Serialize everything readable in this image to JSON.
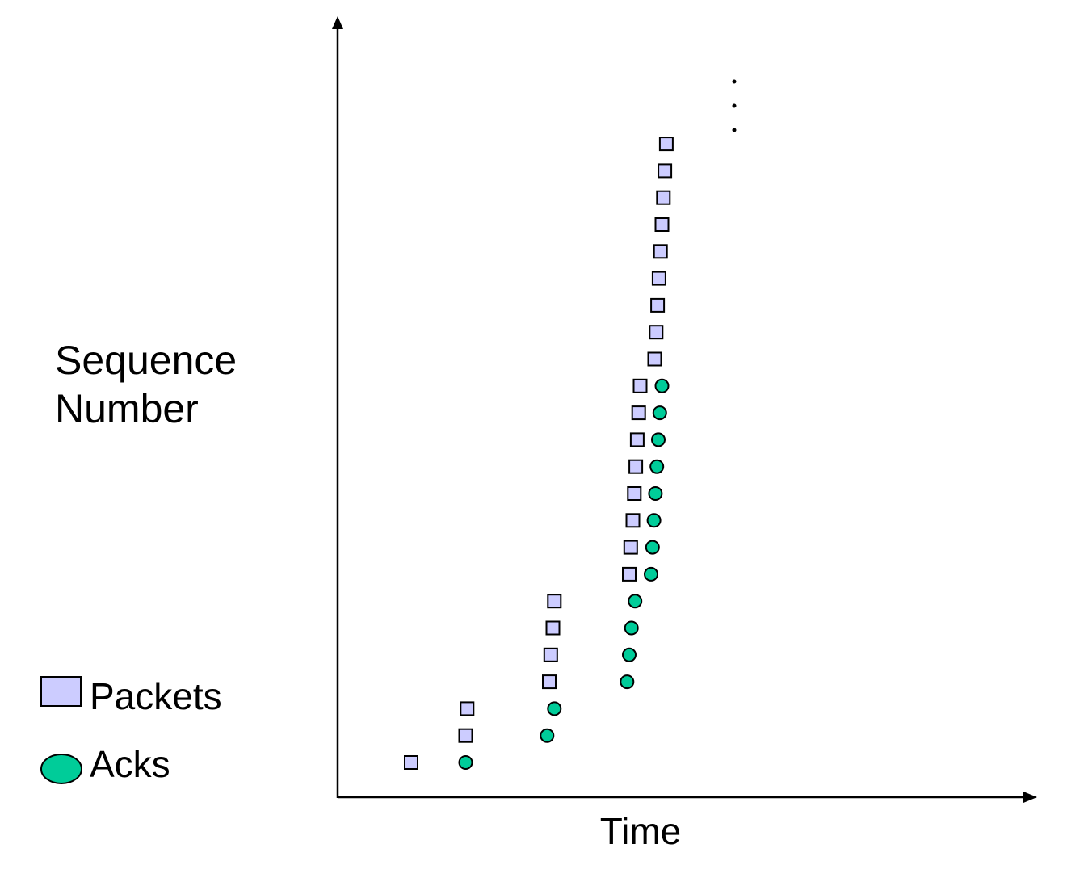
{
  "colors": {
    "packet_fill": "#ccccff",
    "ack_fill": "#00cc99",
    "axis": "#000000"
  },
  "chart_data": {
    "type": "scatter",
    "title": "",
    "xlabel": "Time",
    "ylabel_lines": [
      "Sequence",
      "Number"
    ],
    "grid": false,
    "legend_position": "bottom-left",
    "legend": [
      {
        "name": "Packets",
        "marker": "square"
      },
      {
        "name": "Acks",
        "marker": "circle"
      }
    ],
    "continuation_mark": "...",
    "series": [
      {
        "name": "Packets",
        "marker": "square",
        "points": [
          {
            "x": 1.0,
            "y": 1
          },
          {
            "x": 1.75,
            "y": 2
          },
          {
            "x": 1.77,
            "y": 3
          },
          {
            "x": 2.9,
            "y": 4
          },
          {
            "x": 2.92,
            "y": 5
          },
          {
            "x": 2.95,
            "y": 6
          },
          {
            "x": 2.97,
            "y": 7
          },
          {
            "x": 4.0,
            "y": 8
          },
          {
            "x": 4.02,
            "y": 9
          },
          {
            "x": 4.05,
            "y": 10
          },
          {
            "x": 4.07,
            "y": 11
          },
          {
            "x": 4.09,
            "y": 12
          },
          {
            "x": 4.11,
            "y": 13
          },
          {
            "x": 4.13,
            "y": 14
          },
          {
            "x": 4.15,
            "y": 15
          },
          {
            "x": 4.35,
            "y": 16
          },
          {
            "x": 4.37,
            "y": 17
          },
          {
            "x": 4.39,
            "y": 18
          },
          {
            "x": 4.41,
            "y": 19
          },
          {
            "x": 4.43,
            "y": 20
          },
          {
            "x": 4.45,
            "y": 21
          },
          {
            "x": 4.47,
            "y": 22
          },
          {
            "x": 4.49,
            "y": 23
          },
          {
            "x": 4.51,
            "y": 24
          }
        ]
      },
      {
        "name": "Acks",
        "marker": "circle",
        "points": [
          {
            "x": 1.75,
            "y": 1
          },
          {
            "x": 2.87,
            "y": 2
          },
          {
            "x": 2.97,
            "y": 3
          },
          {
            "x": 3.97,
            "y": 4
          },
          {
            "x": 4.0,
            "y": 5
          },
          {
            "x": 4.03,
            "y": 6
          },
          {
            "x": 4.08,
            "y": 7
          },
          {
            "x": 4.3,
            "y": 8
          },
          {
            "x": 4.32,
            "y": 9
          },
          {
            "x": 4.34,
            "y": 10
          },
          {
            "x": 4.36,
            "y": 11
          },
          {
            "x": 4.38,
            "y": 12
          },
          {
            "x": 4.4,
            "y": 13
          },
          {
            "x": 4.42,
            "y": 14
          },
          {
            "x": 4.45,
            "y": 15
          }
        ]
      }
    ]
  }
}
